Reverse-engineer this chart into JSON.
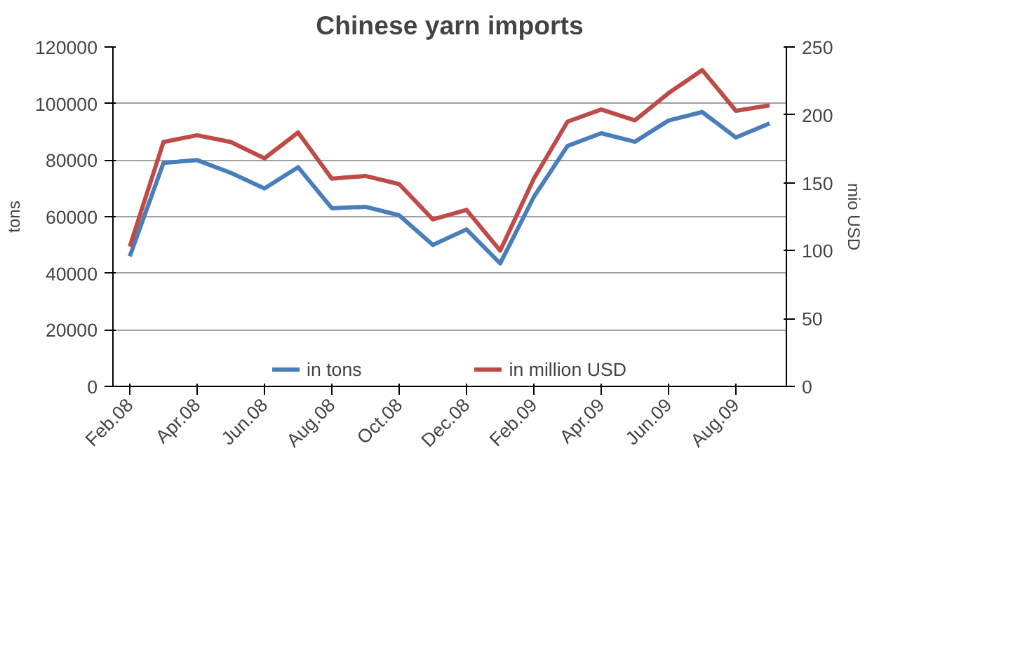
{
  "chart_data": {
    "type": "line",
    "title": "Chinese yarn imports",
    "ylabel": "tons",
    "y2label": "mio USD",
    "categories": [
      "Feb.08",
      null,
      "Apr.08",
      null,
      "Jun.08",
      null,
      "Aug.08",
      null,
      "Oct.08",
      null,
      "Dec.08",
      null,
      "Feb.09",
      null,
      "Apr.09",
      null,
      "Jun.09",
      null,
      "Aug.09",
      null
    ],
    "series": [
      {
        "name": "in tons",
        "color": "#4a7ebb",
        "values": [
          46000,
          79000,
          80000,
          75500,
          70000,
          77500,
          63000,
          63500,
          60500,
          50000,
          55500,
          43500,
          67000,
          85000,
          89500,
          86500,
          94000,
          97000,
          88000,
          93000
        ]
      },
      {
        "name": "in million USD",
        "color": "#be4b48",
        "axis": "y2",
        "values": [
          103,
          180,
          185,
          180,
          168,
          187,
          153,
          155,
          149,
          123,
          130,
          100,
          153,
          195,
          204,
          196,
          216,
          233,
          203,
          207
        ]
      }
    ],
    "ylim": [
      0,
      120000
    ],
    "yticks": [
      0,
      20000,
      40000,
      60000,
      80000,
      100000,
      120000
    ],
    "y2lim": [
      0,
      250
    ],
    "y2ticks": [
      0,
      50,
      100,
      150,
      200,
      250
    ],
    "grid": "y",
    "legend": "bottom",
    "marker": "none",
    "line_style": "solid"
  }
}
